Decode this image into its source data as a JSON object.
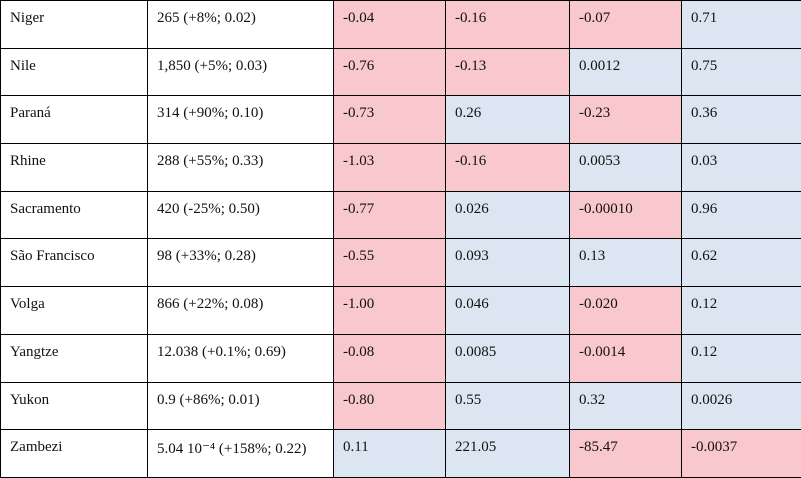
{
  "table": {
    "cell_colors": {
      "negative": "#f9c7ce",
      "positive": "#dce6f2"
    },
    "rows": [
      [
        "Niger",
        "265 (+8%; 0.02)",
        "-0.04",
        "-0.16",
        "-0.07",
        "0.71"
      ],
      [
        "Nile",
        "1,850 (+5%; 0.03)",
        "-0.76",
        "-0.13",
        "0.0012",
        "0.75"
      ],
      [
        "Paraná",
        "314 (+90%; 0.10)",
        "-0.73",
        "0.26",
        "-0.23",
        "0.36"
      ],
      [
        "Rhine",
        "288 (+55%; 0.33)",
        "-1.03",
        "-0.16",
        "0.0053",
        "0.03"
      ],
      [
        "Sacramento",
        "420 (-25%; 0.50)",
        "-0.77",
        "0.026",
        "-0.00010",
        "0.96"
      ],
      [
        "São Francisco",
        "98 (+33%; 0.28)",
        "-0.55",
        "0.093",
        "0.13",
        "0.62"
      ],
      [
        "Volga",
        "866 (+22%; 0.08)",
        "-1.00",
        "0.046",
        "-0.020",
        "0.12"
      ],
      [
        "Yangtze",
        "12.038 (+0.1%; 0.69)",
        "-0.08",
        "0.0085",
        "-0.0014",
        "0.12"
      ],
      [
        "Yukon",
        "0.9 (+86%; 0.01)",
        "-0.80",
        "0.55",
        "0.32",
        "0.0026"
      ],
      [
        "Zambezi",
        "5.04 10⁻⁴ (+158%; 0.22)",
        "0.11",
        "221.05",
        "-85.47",
        "-0.0037"
      ]
    ]
  }
}
